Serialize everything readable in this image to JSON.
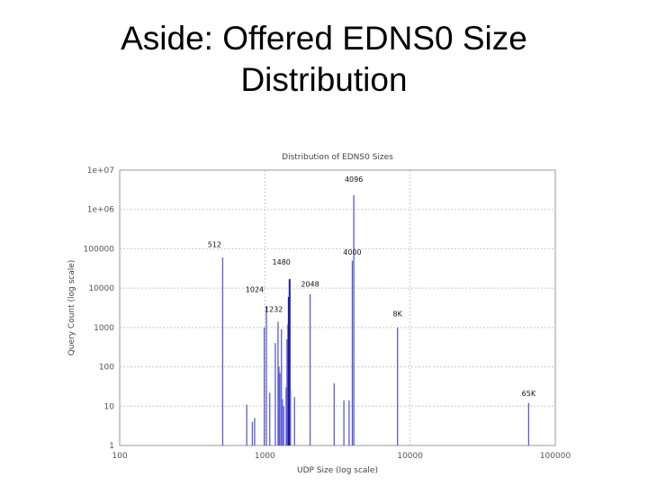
{
  "slide": {
    "title_line1": "Aside: Offered EDNS0 Size",
    "title_line2": "Distribution"
  },
  "colors": {
    "bar": "#5b5bd6",
    "bar_dark": "#1a1aa8",
    "grid": "#c8c8c8",
    "frame": "#9a9a9a"
  },
  "chart_data": {
    "type": "bar",
    "title": "Distribution of EDNS0 Sizes",
    "xlabel": "UDP Size (log scale)",
    "ylabel": "Query Count (log scale)",
    "xscale": "log",
    "yscale": "log",
    "xlim": [
      100,
      100000
    ],
    "ylim": [
      1,
      10000000
    ],
    "grid": true,
    "x_ticks": [
      "100",
      "1000",
      "10000",
      "100000"
    ],
    "y_ticks": [
      "1",
      "10",
      "100",
      "1000",
      "10000",
      "100000",
      "1e+06",
      "1e+07"
    ],
    "points": [
      {
        "x": 512,
        "y": 60000
      },
      {
        "x": 750,
        "y": 11
      },
      {
        "x": 820,
        "y": 4
      },
      {
        "x": 850,
        "y": 5
      },
      {
        "x": 990,
        "y": 1000
      },
      {
        "x": 1024,
        "y": 3500
      },
      {
        "x": 1080,
        "y": 22
      },
      {
        "x": 1180,
        "y": 400
      },
      {
        "x": 1232,
        "y": 1400
      },
      {
        "x": 1250,
        "y": 100
      },
      {
        "x": 1270,
        "y": 70
      },
      {
        "x": 1300,
        "y": 900
      },
      {
        "x": 1320,
        "y": 15
      },
      {
        "x": 1350,
        "y": 10
      },
      {
        "x": 1400,
        "y": 30
      },
      {
        "x": 1420,
        "y": 500
      },
      {
        "x": 1440,
        "y": 1200
      },
      {
        "x": 1460,
        "y": 6000
      },
      {
        "x": 1480,
        "y": 17000
      },
      {
        "x": 1500,
        "y": 25
      },
      {
        "x": 1600,
        "y": 17
      },
      {
        "x": 2048,
        "y": 7000
      },
      {
        "x": 3000,
        "y": 38
      },
      {
        "x": 3500,
        "y": 14
      },
      {
        "x": 3800,
        "y": 14
      },
      {
        "x": 4000,
        "y": 50000
      },
      {
        "x": 4096,
        "y": 2300000
      },
      {
        "x": 8192,
        "y": 1000
      },
      {
        "x": 65535,
        "y": 12
      }
    ],
    "dark_bars_x": [
      1460,
      1480
    ],
    "annotations": [
      {
        "text": "4096",
        "x": 4096,
        "y": 5000000
      },
      {
        "text": "512",
        "x": 450,
        "y": 110000
      },
      {
        "text": "4000",
        "x": 4000,
        "y": 70000
      },
      {
        "text": "1480",
        "x": 1300,
        "y": 40000
      },
      {
        "text": "2048",
        "x": 2048,
        "y": 11000
      },
      {
        "text": "1024",
        "x": 850,
        "y": 8000
      },
      {
        "text": "1232",
        "x": 1150,
        "y": 2500
      },
      {
        "text": "8K",
        "x": 8192,
        "y": 1900
      },
      {
        "text": "65K",
        "x": 65535,
        "y": 18
      }
    ]
  }
}
